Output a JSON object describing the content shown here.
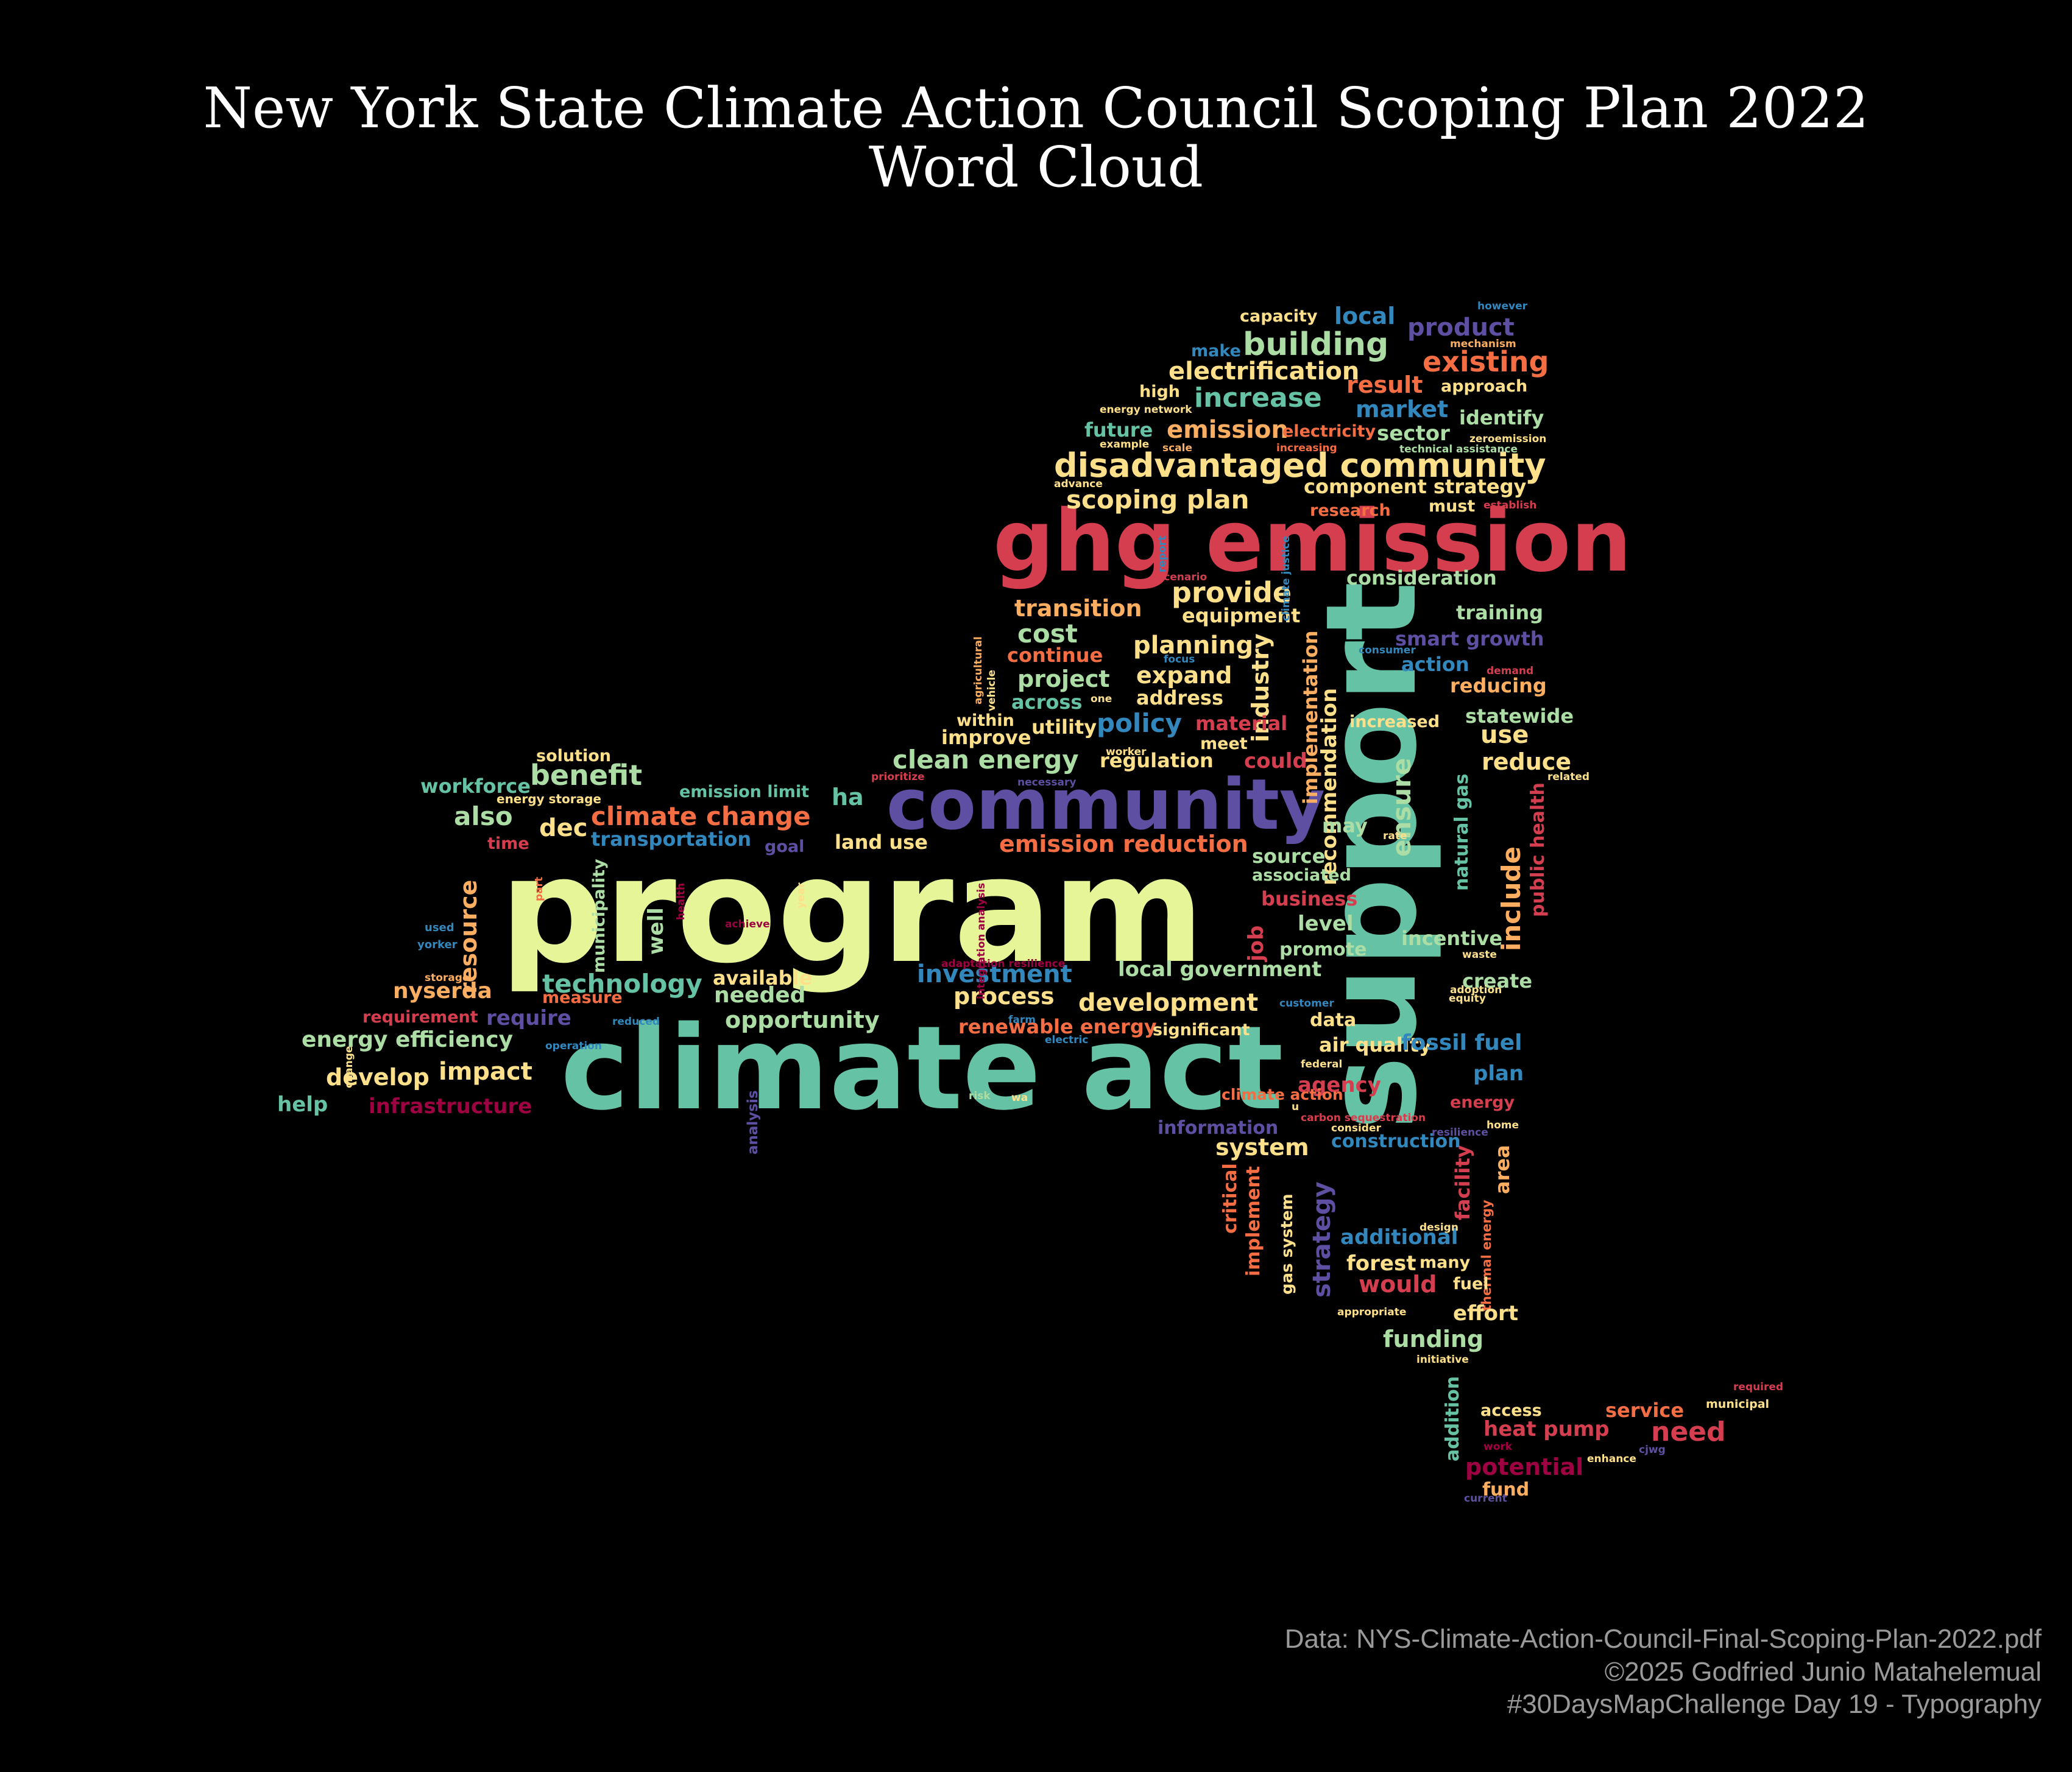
{
  "title": {
    "line1": "New York State Climate Action Council Scoping Plan 2022",
    "line2": "Word Cloud"
  },
  "credits": {
    "data_source": "Data: NYS-Climate-Action-Council-Final-Scoping-Plan-2022.pdf",
    "copyright": "©2025 Godfried Junio Matahelemual",
    "tag": "#30DaysMapChallenge Day 19 - Typography"
  },
  "palette": {
    "yellow": "#e6f598",
    "teal": "#66c2a5",
    "red": "#d53e4f",
    "orange": "#f46d43",
    "amber": "#fdae61",
    "cream": "#fee08b",
    "green": "#abdda4",
    "blue": "#3288bd",
    "purple": "#5e4fa2",
    "crimson": "#9e0142"
  },
  "words": [
    {
      "text": "program",
      "color": "yellow"
    },
    {
      "text": "support",
      "color": "teal"
    },
    {
      "text": "climate act",
      "color": "teal"
    },
    {
      "text": "ghg emission",
      "color": "red"
    },
    {
      "text": "community",
      "color": "purple"
    },
    {
      "text": "disadvantaged community",
      "color": "cream"
    },
    {
      "text": "building",
      "color": "green"
    },
    {
      "text": "existing",
      "color": "orange"
    },
    {
      "text": "electrification",
      "color": "cream"
    },
    {
      "text": "increase",
      "color": "teal"
    },
    {
      "text": "product",
      "color": "purple"
    },
    {
      "text": "local",
      "color": "blue"
    },
    {
      "text": "capacity",
      "color": "cream"
    },
    {
      "text": "however",
      "color": "blue"
    },
    {
      "text": "mechanism",
      "color": "amber"
    },
    {
      "text": "make",
      "color": "blue"
    },
    {
      "text": "result",
      "color": "orange"
    },
    {
      "text": "approach",
      "color": "cream"
    },
    {
      "text": "high",
      "color": "cream"
    },
    {
      "text": "energy network",
      "color": "cream"
    },
    {
      "text": "market",
      "color": "blue"
    },
    {
      "text": "identify",
      "color": "green"
    },
    {
      "text": "future",
      "color": "teal"
    },
    {
      "text": "emission",
      "color": "amber"
    },
    {
      "text": "electricity",
      "color": "orange"
    },
    {
      "text": "sector",
      "color": "green"
    },
    {
      "text": "zeroemission",
      "color": "cream"
    },
    {
      "text": "example",
      "color": "cream"
    },
    {
      "text": "scale",
      "color": "amber"
    },
    {
      "text": "increasing",
      "color": "orange"
    },
    {
      "text": "technical assistance",
      "color": "green"
    },
    {
      "text": "advance",
      "color": "cream"
    },
    {
      "text": "component strategy",
      "color": "cream"
    },
    {
      "text": "scoping plan",
      "color": "cream"
    },
    {
      "text": "research",
      "color": "orange"
    },
    {
      "text": "must",
      "color": "cream"
    },
    {
      "text": "establish",
      "color": "red"
    },
    {
      "text": "consideration",
      "color": "green"
    },
    {
      "text": "provide",
      "color": "cream"
    },
    {
      "text": "transition",
      "color": "amber"
    },
    {
      "text": "equipment",
      "color": "cream"
    },
    {
      "text": "training",
      "color": "green"
    },
    {
      "text": "cost",
      "color": "green"
    },
    {
      "text": "planning",
      "color": "cream"
    },
    {
      "text": "smart growth",
      "color": "purple"
    },
    {
      "text": "continue",
      "color": "orange"
    },
    {
      "text": "industry",
      "color": "cream"
    },
    {
      "text": "implementation",
      "color": "amber"
    },
    {
      "text": "consumer",
      "color": "blue"
    },
    {
      "text": "action",
      "color": "blue"
    },
    {
      "text": "project",
      "color": "green"
    },
    {
      "text": "expand",
      "color": "cream"
    },
    {
      "text": "reducing",
      "color": "amber"
    },
    {
      "text": "demand",
      "color": "red"
    },
    {
      "text": "address",
      "color": "cream"
    },
    {
      "text": "across",
      "color": "teal"
    },
    {
      "text": "recommendation",
      "color": "cream"
    },
    {
      "text": "statewide",
      "color": "green"
    },
    {
      "text": "increased",
      "color": "cream"
    },
    {
      "text": "within",
      "color": "cream"
    },
    {
      "text": "utility",
      "color": "cream"
    },
    {
      "text": "policy",
      "color": "blue"
    },
    {
      "text": "material",
      "color": "red"
    },
    {
      "text": "use",
      "color": "cream"
    },
    {
      "text": "improve",
      "color": "cream"
    },
    {
      "text": "meet",
      "color": "cream"
    },
    {
      "text": "clean energy",
      "color": "green"
    },
    {
      "text": "regulation",
      "color": "cream"
    },
    {
      "text": "could",
      "color": "red"
    },
    {
      "text": "reduce",
      "color": "cream"
    },
    {
      "text": "solution",
      "color": "cream"
    },
    {
      "text": "workforce",
      "color": "teal"
    },
    {
      "text": "benefit",
      "color": "green"
    },
    {
      "text": "emission limit",
      "color": "teal"
    },
    {
      "text": "energy storage",
      "color": "cream"
    },
    {
      "text": "also",
      "color": "green"
    },
    {
      "text": "climate change",
      "color": "orange"
    },
    {
      "text": "dec",
      "color": "cream"
    },
    {
      "text": "transportation",
      "color": "blue"
    },
    {
      "text": "ha",
      "color": "teal"
    },
    {
      "text": "land use",
      "color": "cream"
    },
    {
      "text": "emission reduction",
      "color": "orange"
    },
    {
      "text": "may",
      "color": "green"
    },
    {
      "text": "ensure",
      "color": "green"
    },
    {
      "text": "natural gas",
      "color": "teal"
    },
    {
      "text": "public health",
      "color": "red"
    },
    {
      "text": "time",
      "color": "red"
    },
    {
      "text": "goal",
      "color": "purple"
    },
    {
      "text": "source",
      "color": "green"
    },
    {
      "text": "associated",
      "color": "green"
    },
    {
      "text": "include",
      "color": "amber"
    },
    {
      "text": "business",
      "color": "red"
    },
    {
      "text": "resource",
      "color": "amber"
    },
    {
      "text": "municipality",
      "color": "green"
    },
    {
      "text": "well",
      "color": "green"
    },
    {
      "text": "level",
      "color": "green"
    },
    {
      "text": "promote",
      "color": "green"
    },
    {
      "text": "incentive",
      "color": "green"
    },
    {
      "text": "job",
      "color": "red"
    },
    {
      "text": "local government",
      "color": "green"
    },
    {
      "text": "technology",
      "color": "teal"
    },
    {
      "text": "available",
      "color": "cream"
    },
    {
      "text": "investment",
      "color": "blue"
    },
    {
      "text": "create",
      "color": "green"
    },
    {
      "text": "nyserda",
      "color": "amber"
    },
    {
      "text": "needed",
      "color": "green"
    },
    {
      "text": "process",
      "color": "cream"
    },
    {
      "text": "development",
      "color": "cream"
    },
    {
      "text": "measure",
      "color": "orange"
    },
    {
      "text": "requirement",
      "color": "red"
    },
    {
      "text": "require",
      "color": "purple"
    },
    {
      "text": "opportunity",
      "color": "green"
    },
    {
      "text": "renewable energy",
      "color": "orange"
    },
    {
      "text": "significant",
      "color": "cream"
    },
    {
      "text": "data",
      "color": "cream"
    },
    {
      "text": "energy efficiency",
      "color": "green"
    },
    {
      "text": "air quality",
      "color": "cream"
    },
    {
      "text": "fossil fuel",
      "color": "blue"
    },
    {
      "text": "develop",
      "color": "cream"
    },
    {
      "text": "impact",
      "color": "cream"
    },
    {
      "text": "plan",
      "color": "blue"
    },
    {
      "text": "help",
      "color": "teal"
    },
    {
      "text": "infrastructure",
      "color": "crimson"
    },
    {
      "text": "agency",
      "color": "red"
    },
    {
      "text": "energy",
      "color": "red"
    },
    {
      "text": "information",
      "color": "purple"
    },
    {
      "text": "construction",
      "color": "blue"
    },
    {
      "text": "system",
      "color": "cream"
    },
    {
      "text": "area",
      "color": "amber"
    },
    {
      "text": "facility",
      "color": "red"
    },
    {
      "text": "critical",
      "color": "orange"
    },
    {
      "text": "implement",
      "color": "orange"
    },
    {
      "text": "gas system",
      "color": "cream"
    },
    {
      "text": "strategy",
      "color": "purple"
    },
    {
      "text": "additional",
      "color": "blue"
    },
    {
      "text": "thermal energy",
      "color": "orange"
    },
    {
      "text": "forest",
      "color": "cream"
    },
    {
      "text": "many",
      "color": "cream"
    },
    {
      "text": "would",
      "color": "red"
    },
    {
      "text": "fuel",
      "color": "cream"
    },
    {
      "text": "effort",
      "color": "cream"
    },
    {
      "text": "funding",
      "color": "green"
    },
    {
      "text": "appropriate",
      "color": "cream"
    },
    {
      "text": "initiative",
      "color": "cream"
    },
    {
      "text": "addition",
      "color": "teal"
    },
    {
      "text": "access",
      "color": "cream"
    },
    {
      "text": "service",
      "color": "orange"
    },
    {
      "text": "required",
      "color": "red"
    },
    {
      "text": "municipal",
      "color": "cream"
    },
    {
      "text": "heat pump",
      "color": "red"
    },
    {
      "text": "need",
      "color": "red"
    },
    {
      "text": "potential",
      "color": "crimson"
    },
    {
      "text": "work",
      "color": "crimson"
    },
    {
      "text": "enhance",
      "color": "cream"
    },
    {
      "text": "cjwg",
      "color": "purple"
    },
    {
      "text": "fund",
      "color": "amber"
    },
    {
      "text": "current",
      "color": "purple"
    },
    {
      "text": "used",
      "color": "blue"
    },
    {
      "text": "yorker",
      "color": "blue"
    },
    {
      "text": "storage",
      "color": "amber"
    },
    {
      "text": "reduced",
      "color": "blue"
    },
    {
      "text": "operation",
      "color": "blue"
    },
    {
      "text": "change",
      "color": "cream"
    },
    {
      "text": "part",
      "color": "orange"
    },
    {
      "text": "achieve",
      "color": "crimson"
    },
    {
      "text": "health",
      "color": "crimson"
    },
    {
      "text": "year",
      "color": "cream"
    },
    {
      "text": "integration analysis",
      "color": "crimson"
    },
    {
      "text": "adaptation resilience",
      "color": "crimson"
    },
    {
      "text": "farm",
      "color": "blue"
    },
    {
      "text": "electric",
      "color": "blue"
    },
    {
      "text": "analysis",
      "color": "purple"
    },
    {
      "text": "risk",
      "color": "green"
    },
    {
      "text": "wa",
      "color": "cream"
    },
    {
      "text": "climate action",
      "color": "orange"
    },
    {
      "text": "u",
      "color": "cream"
    },
    {
      "text": "carbon sequestration",
      "color": "red"
    },
    {
      "text": "consider",
      "color": "cream"
    },
    {
      "text": "resilience",
      "color": "purple"
    },
    {
      "text": "home",
      "color": "cream"
    },
    {
      "text": "design",
      "color": "cream"
    },
    {
      "text": "federal",
      "color": "cream"
    },
    {
      "text": "customer",
      "color": "blue"
    },
    {
      "text": "equity",
      "color": "cream"
    },
    {
      "text": "waste",
      "color": "cream"
    },
    {
      "text": "adoption",
      "color": "cream"
    },
    {
      "text": "rate",
      "color": "cream"
    },
    {
      "text": "related",
      "color": "cream"
    },
    {
      "text": "prioritize",
      "color": "red"
    },
    {
      "text": "necessary",
      "color": "purple"
    },
    {
      "text": "worker",
      "color": "cream"
    },
    {
      "text": "one",
      "color": "cream"
    },
    {
      "text": "vehicle",
      "color": "cream"
    },
    {
      "text": "agricultural",
      "color": "amber"
    },
    {
      "text": "focus",
      "color": "blue"
    },
    {
      "text": "scenario",
      "color": "red"
    },
    {
      "text": "report",
      "color": "blue"
    },
    {
      "text": "climate justice",
      "color": "blue"
    },
    {
      "text": "agriculture forestry",
      "color": "blue"
    },
    {
      "text": "standard",
      "color": "blue"
    }
  ]
}
